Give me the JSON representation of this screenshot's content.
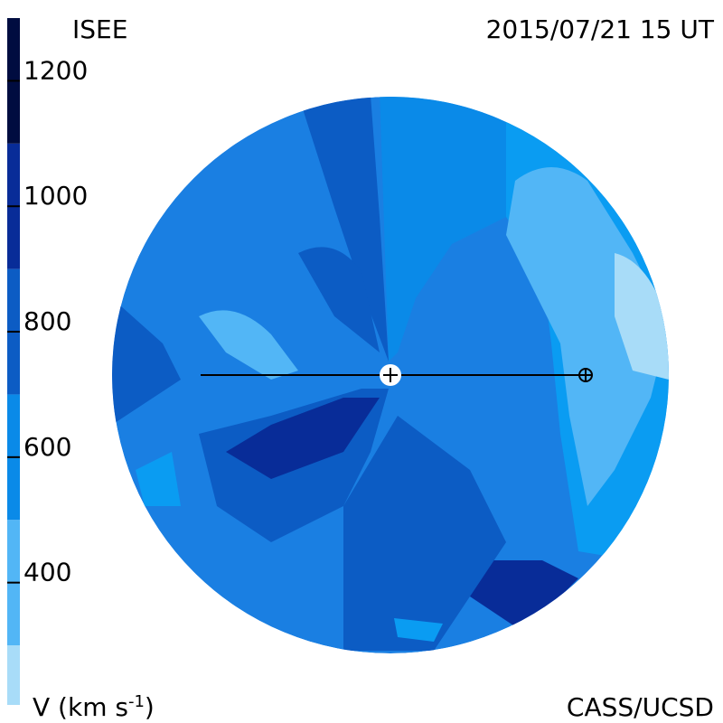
{
  "header": {
    "title": "ISEE",
    "timestamp": "2015/07/21 15 UT"
  },
  "footer": {
    "credit": "CASS/UCSD"
  },
  "colorbar": {
    "label": {
      "prefix": "V (km s",
      "exponent": "-1",
      "suffix": ")"
    },
    "range": [
      205,
      1300
    ],
    "ticks": [
      400,
      600,
      800,
      1000,
      1200
    ],
    "bands": [
      {
        "from": 205,
        "to": 300,
        "color": "#a8dcf8"
      },
      {
        "from": 300,
        "to": 500,
        "color": "#52b6f6"
      },
      {
        "from": 500,
        "to": 700,
        "color": "#0a8ae8"
      },
      {
        "from": 700,
        "to": 900,
        "color": "#0c5cc4"
      },
      {
        "from": 900,
        "to": 1100,
        "color": "#082c98"
      },
      {
        "from": 1100,
        "to": 1300,
        "color": "#000c40"
      }
    ]
  }
}
